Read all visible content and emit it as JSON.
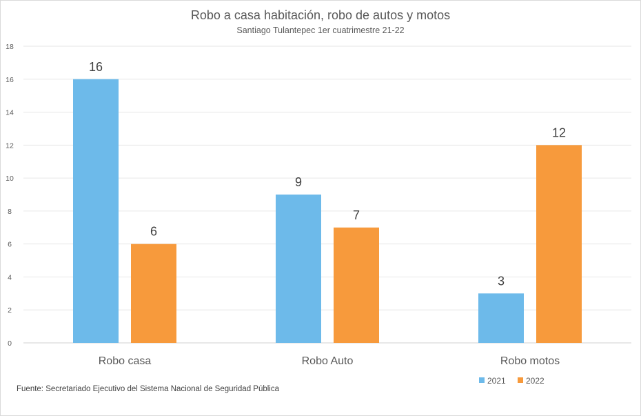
{
  "chart_data": {
    "type": "bar",
    "title": "Robo a casa habitación, robo de autos y motos",
    "subtitle": "Santiago Tulantepec 1er cuatrimestre 21-22",
    "categories": [
      "Robo casa",
      "Robo Auto",
      "Robo motos"
    ],
    "series": [
      {
        "name": "2021",
        "values": [
          16,
          9,
          3
        ],
        "color": "#6dbaea"
      },
      {
        "name": "2022",
        "values": [
          6,
          7,
          12
        ],
        "color": "#f79a3c"
      }
    ],
    "ylim": [
      0,
      18
    ],
    "yticks": [
      0,
      2,
      4,
      6,
      8,
      10,
      12,
      14,
      16,
      18
    ],
    "grid": true,
    "legend_position": "bottom-right",
    "source": "Fuente:  Secretariado Ejecutivo del Sistema Nacional de Seguridad Pública"
  }
}
